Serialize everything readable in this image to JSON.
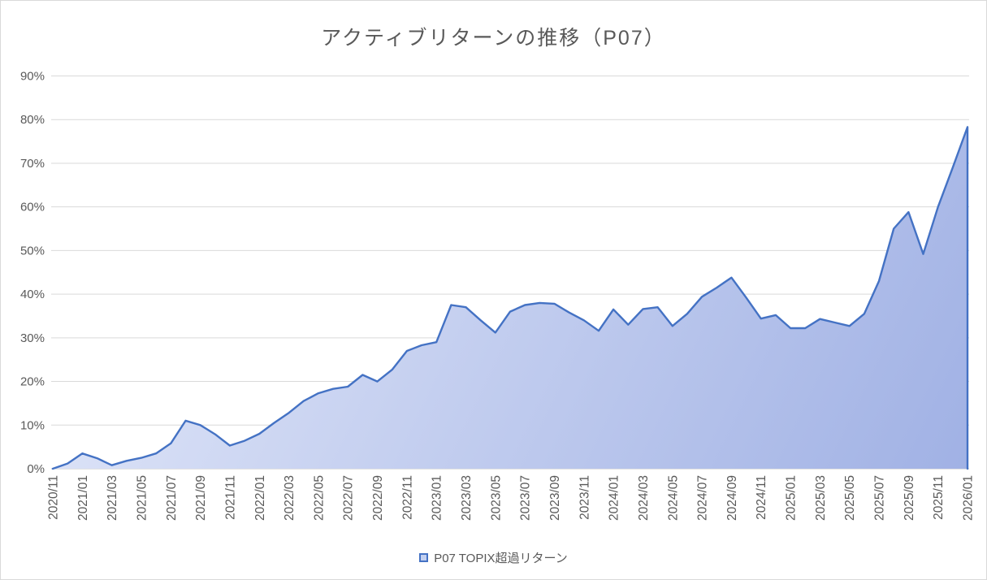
{
  "title": "アクティブリターンの推移（P07）",
  "legend": {
    "series_label": "P07 TOPIX超過リターン"
  },
  "colors": {
    "line": "#4472c4",
    "area_gradient_start": "#e6ebfa",
    "area_gradient_end": "#9fb0e4",
    "gridline": "#d9d9d9",
    "axis_line": "#c6c6c6",
    "label_text": "#595959",
    "title_text": "#595959",
    "legend_swatch_fill": "#c3d0f0",
    "legend_swatch_border": "#4472c4"
  },
  "chart_data": {
    "type": "area",
    "title": "アクティブリターンの推移（P07）",
    "series_name": "P07 TOPIX超過リターン",
    "xlabel": "",
    "ylabel": "",
    "ylim": [
      0,
      90
    ],
    "y_tick_step": 10,
    "y_tick_suffix": "%",
    "x_tick_every": 2,
    "grid": "horizontal",
    "legend_position": "bottom",
    "x": [
      "2020/11",
      "2020/12",
      "2021/01",
      "2021/02",
      "2021/03",
      "2021/04",
      "2021/05",
      "2021/06",
      "2021/07",
      "2021/08",
      "2021/09",
      "2021/10",
      "2021/11",
      "2021/12",
      "2022/01",
      "2022/02",
      "2022/03",
      "2022/04",
      "2022/05",
      "2022/06",
      "2022/07",
      "2022/08",
      "2022/09",
      "2022/10",
      "2022/11",
      "2022/12",
      "2023/01",
      "2023/02",
      "2023/03",
      "2023/04",
      "2023/05",
      "2023/06",
      "2023/07",
      "2023/08",
      "2023/09",
      "2023/10",
      "2023/11",
      "2023/12",
      "2024/01",
      "2024/02",
      "2024/03",
      "2024/04",
      "2024/05",
      "2024/06",
      "2024/07",
      "2024/08",
      "2024/09",
      "2024/10",
      "2024/11",
      "2024/12",
      "2025/01",
      "2025/02",
      "2025/03",
      "2025/04",
      "2025/05",
      "2025/06",
      "2025/07",
      "2025/08",
      "2025/09",
      "2025/10",
      "2025/11",
      "2025/12",
      "2026/01"
    ],
    "values": [
      0,
      1.2,
      3.5,
      2.4,
      0.8,
      1.8,
      2.5,
      3.5,
      5.8,
      11.0,
      10.0,
      7.9,
      5.3,
      6.4,
      8.0,
      10.5,
      12.8,
      15.5,
      17.3,
      18.3,
      18.8,
      21.5,
      20.0,
      22.7,
      27.0,
      28.3,
      29.0,
      37.5,
      37.0,
      34.0,
      31.2,
      36.0,
      37.5,
      38.0,
      37.8,
      35.8,
      34.0,
      31.6,
      36.5,
      33.0,
      36.6,
      37.0,
      32.7,
      35.5,
      39.4,
      41.5,
      43.8,
      39.2,
      34.4,
      35.2,
      32.2,
      32.2,
      34.3,
      33.5,
      32.7,
      35.5,
      43.0,
      55.0,
      58.8,
      49.2,
      60.0,
      69.0,
      78.3
    ]
  }
}
